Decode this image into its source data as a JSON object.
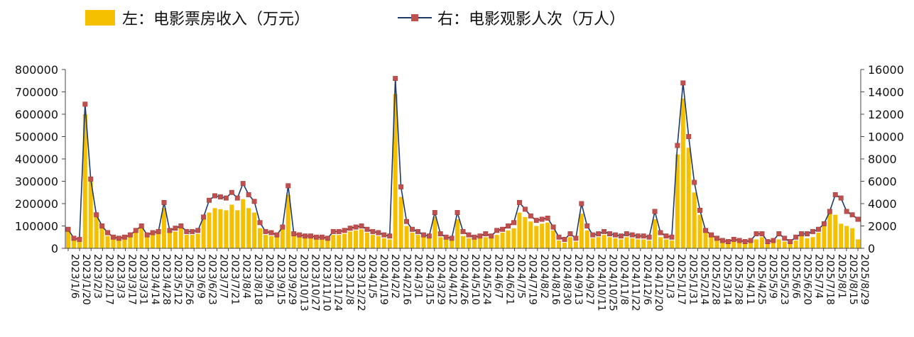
{
  "chart_data": {
    "type": "bar+line",
    "title": "",
    "legend": {
      "placement": "top",
      "left_label": "左：电影票房收入（万元）",
      "right_label": "右：电影观影人次（万人）"
    },
    "y_left": {
      "min": 0,
      "max": 800000,
      "ticks": [
        0,
        100000,
        200000,
        300000,
        400000,
        500000,
        600000,
        700000,
        800000
      ]
    },
    "y_right": {
      "min": 0,
      "max": 16000,
      "ticks": [
        0,
        2000,
        4000,
        6000,
        8000,
        10000,
        12000,
        14000,
        16000
      ]
    },
    "x_tick_labels": [
      "2023/1/6",
      "2023/1/20",
      "2023/2/3",
      "2023/2/17",
      "2023/3/3",
      "2023/3/17",
      "2023/3/31",
      "2023/4/14",
      "2023/4/28",
      "2023/5/12",
      "2023/5/26",
      "2023/6/9",
      "2023/6/23",
      "2023/7/7",
      "2023/7/21",
      "2023/8/4",
      "2023/8/18",
      "2023/9/1",
      "2023/9/15",
      "2023/9/29",
      "2023/10/13",
      "2023/10/27",
      "2023/11/10",
      "2023/11/24",
      "2023/12/8",
      "2023/12/22",
      "2024/1/5",
      "2024/1/19",
      "2024/2/2",
      "2024/2/16",
      "2024/3/1",
      "2024/3/15",
      "2024/3/29",
      "2024/4/12",
      "2024/4/26",
      "2024/5/10",
      "2024/5/24",
      "2024/6/7",
      "2024/6/21",
      "2024/7/5",
      "2024/7/19",
      "2024/8/2",
      "2024/8/16",
      "2024/8/30",
      "2024/9/13",
      "2024/9/27",
      "2024/10/11",
      "2024/10/25",
      "2024/11/8",
      "2024/11/22",
      "2024/12/6",
      "2024/12/20",
      "2025/1/3",
      "2025/1/17",
      "2025/1/31",
      "2025/2/14",
      "2025/2/28",
      "2025/3/14",
      "2025/3/28",
      "2025/4/11",
      "2025/4/25",
      "2025/5/9",
      "2025/5/23",
      "2025/6/6",
      "2025/6/20",
      "2025/7/4",
      "2025/7/18",
      "2025/8/1",
      "2025/8/15",
      "2025/8/29"
    ],
    "series": [
      {
        "name": "左：电影票房收入（万元）",
        "axis": "left",
        "kind": "bar",
        "color": "#F5C000",
        "values": [
          85000,
          40000,
          35000,
          600000,
          300000,
          140000,
          90000,
          55000,
          45000,
          40000,
          45000,
          55000,
          80000,
          95000,
          55000,
          60000,
          65000,
          180000,
          70000,
          75000,
          90000,
          60000,
          60000,
          65000,
          130000,
          160000,
          180000,
          175000,
          170000,
          195000,
          170000,
          220000,
          180000,
          160000,
          90000,
          60000,
          55000,
          50000,
          85000,
          240000,
          55000,
          50000,
          45000,
          45000,
          40000,
          40000,
          35000,
          60000,
          60000,
          65000,
          75000,
          80000,
          85000,
          70000,
          60000,
          55000,
          45000,
          40000,
          690000,
          230000,
          100000,
          70000,
          60000,
          50000,
          45000,
          140000,
          50000,
          40000,
          35000,
          130000,
          55000,
          45000,
          40000,
          45000,
          50000,
          45000,
          60000,
          70000,
          80000,
          90000,
          160000,
          140000,
          120000,
          100000,
          110000,
          115000,
          80000,
          35000,
          25000,
          50000,
          30000,
          155000,
          80000,
          45000,
          50000,
          60000,
          50000,
          45000,
          40000,
          50000,
          45000,
          40000,
          40000,
          35000,
          130000,
          50000,
          40000,
          35000,
          420000,
          670000,
          450000,
          250000,
          150000,
          75000,
          50000,
          35000,
          25000,
          20000,
          30000,
          25000,
          20000,
          25000,
          40000,
          50000,
          20000,
          25000,
          40000,
          30000,
          20000,
          35000,
          55000,
          45000,
          50000,
          70000,
          100000,
          160000,
          150000,
          110000,
          100000,
          90000,
          40000
        ],
        "value_labels": []
      },
      {
        "name": "右：电影观影人次（万人）",
        "axis": "right",
        "kind": "line",
        "color": "#1F3A6B",
        "marker_color": "#C0504D",
        "values": [
          1700,
          900,
          800,
          12900,
          6200,
          3000,
          2000,
          1400,
          1000,
          900,
          1000,
          1200,
          1600,
          2000,
          1200,
          1400,
          1500,
          4100,
          1600,
          1800,
          2000,
          1500,
          1500,
          1600,
          2800,
          4300,
          4700,
          4600,
          4500,
          5000,
          4500,
          5800,
          4800,
          4200,
          2300,
          1500,
          1400,
          1200,
          1900,
          5600,
          1300,
          1200,
          1100,
          1100,
          1000,
          1000,
          900,
          1500,
          1500,
          1600,
          1800,
          1900,
          2000,
          1700,
          1500,
          1400,
          1200,
          1100,
          15200,
          5500,
          2400,
          1700,
          1500,
          1200,
          1100,
          3200,
          1300,
          1000,
          900,
          3200,
          1500,
          1200,
          1000,
          1100,
          1300,
          1100,
          1600,
          1700,
          2000,
          2300,
          4100,
          3500,
          2900,
          2500,
          2600,
          2700,
          1900,
          1000,
          800,
          1300,
          900,
          4000,
          2000,
          1200,
          1300,
          1500,
          1300,
          1200,
          1100,
          1300,
          1200,
          1100,
          1100,
          1000,
          3300,
          1400,
          1100,
          1000,
          9200,
          14800,
          10000,
          5900,
          3400,
          1600,
          1200,
          900,
          700,
          600,
          800,
          700,
          600,
          700,
          1300,
          1300,
          600,
          700,
          1300,
          900,
          600,
          1000,
          1300,
          1300,
          1500,
          1700,
          2200,
          3300,
          4800,
          4500,
          3300,
          3000,
          2600
        ]
      }
    ]
  }
}
